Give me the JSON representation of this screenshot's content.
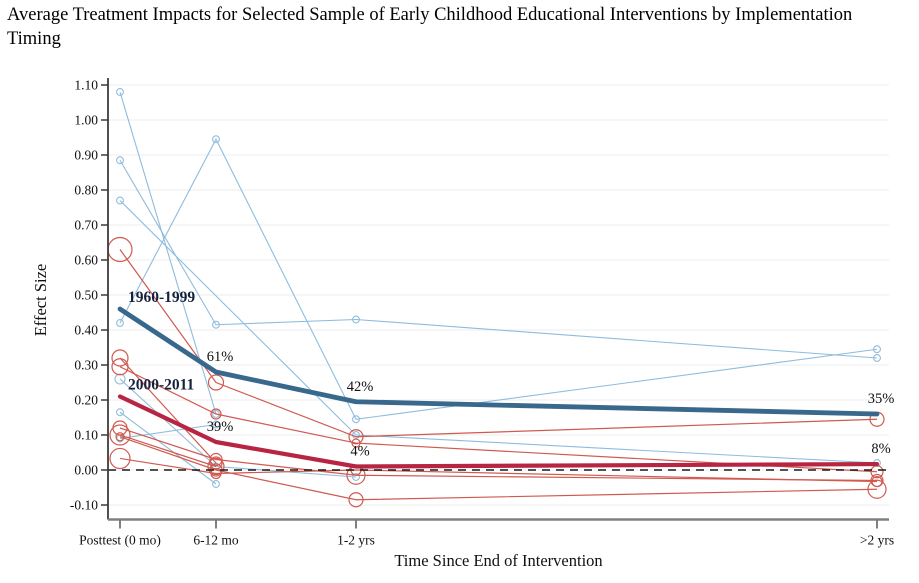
{
  "title": "Average Treatment Impacts for Selected Sample of Early Childhood Educational Interventions by Implementation Timing",
  "chart_data": {
    "type": "line",
    "title": "Average Treatment Impacts for Selected Sample of Early Childhood Educational Interventions by Implementation Timing",
    "xlabel": "Time Since End of Intervention",
    "ylabel": "Effect Size",
    "x_categories": [
      "Posttest (0 mo)",
      "6-12 mo",
      "1-2 yrs",
      ">2 yrs"
    ],
    "ylim": [
      -0.1,
      1.1
    ],
    "ytick_labels": [
      "1.10",
      "1.00",
      "0.90",
      "0.80",
      "0.70",
      "0.60",
      "0.50",
      "0.40",
      "0.30",
      "0.20",
      "0.10",
      "0.00",
      "-0.10"
    ],
    "grid": "horizontal-faint",
    "zero_reference_line": {
      "value": 0.0,
      "style": "dashed",
      "color": "#1a1a1a"
    },
    "legend_position": "inline-labels",
    "colors": {
      "bold_early": "#38688c",
      "bold_late": "#b72543",
      "thin_early": "#8fbcdc",
      "thin_late": "#d05a50",
      "series_label_text": "#14213d",
      "annotation_text": "#111111",
      "grid_line": "#f0f0f0",
      "y_axis": "#3c3c3c",
      "x_axis": "#808080"
    },
    "bold_series": [
      {
        "name": "1960-1999",
        "values": [
          0.46,
          0.28,
          0.195,
          0.16
        ],
        "annotations": [
          {
            "xi": 1,
            "text": "61%"
          },
          {
            "xi": 2,
            "text": "42%"
          },
          {
            "xi": 3,
            "text": "35%"
          }
        ]
      },
      {
        "name": "2000-2011",
        "values": [
          0.21,
          0.08,
          0.01,
          0.017
        ],
        "annotations": [
          {
            "xi": 1,
            "text": "39%"
          },
          {
            "xi": 2,
            "text": "4%"
          },
          {
            "xi": 3,
            "text": "8%"
          }
        ]
      }
    ],
    "thin_series": [
      {
        "group": "1960-1999",
        "values": [
          1.08,
          0.16,
          null,
          null
        ]
      },
      {
        "group": "1960-1999",
        "values": [
          0.42,
          0.945,
          0.145,
          0.345
        ]
      },
      {
        "group": "1960-1999",
        "values": [
          0.885,
          0.415,
          0.43,
          0.32
        ]
      },
      {
        "group": "1960-1999",
        "values": [
          0.77,
          null,
          0.1,
          0.02
        ]
      },
      {
        "group": "1960-1999",
        "values": [
          0.26,
          0.01,
          -0.02,
          null
        ],
        "r": [
          5,
          3.4,
          3.4,
          null
        ]
      },
      {
        "group": "1960-1999",
        "values": [
          0.165,
          -0.04,
          null,
          null
        ]
      },
      {
        "group": "1960-1999",
        "values": [
          0.09,
          0.13,
          null,
          null
        ]
      },
      {
        "group": "2000-2011",
        "values": [
          0.63,
          0.25,
          0.095,
          0.145
        ],
        "r": [
          12,
          7.5,
          7,
          7
        ]
      },
      {
        "group": "2000-2011",
        "values": [
          0.32,
          0.02,
          null,
          null
        ],
        "r": [
          8,
          6,
          null,
          null
        ]
      },
      {
        "group": "2000-2011",
        "values": [
          0.295,
          0.16,
          0.077,
          -0.005
        ],
        "r": [
          8,
          5,
          4,
          6
        ]
      },
      {
        "group": "2000-2011",
        "values": [
          0.12,
          0.03,
          -0.015,
          -0.03
        ],
        "r": [
          7,
          6,
          9,
          6
        ]
      },
      {
        "group": "2000-2011",
        "values": [
          0.1,
          0.01,
          null,
          null
        ],
        "r": [
          10,
          8,
          null,
          null
        ]
      },
      {
        "group": "2000-2011",
        "values": [
          0.095,
          0.0,
          -0.085,
          -0.055
        ],
        "r": [
          4,
          6,
          7,
          9
        ]
      },
      {
        "group": "2000-2011",
        "values": [
          0.033,
          -0.01,
          0.0,
          -0.033
        ],
        "r": [
          10,
          5,
          5,
          5
        ]
      }
    ]
  }
}
